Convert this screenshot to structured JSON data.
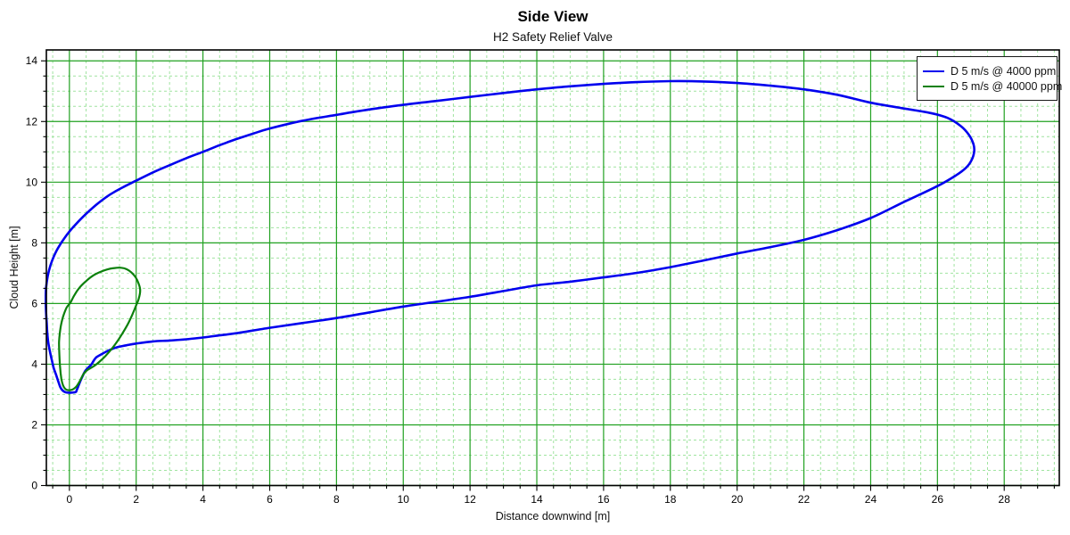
{
  "title": "Side View",
  "subtitle": "H2 Safety Relief Valve",
  "chart_data": {
    "type": "line",
    "title": "Side View",
    "subtitle": "H2 Safety Relief Valve",
    "xlabel": "Distance downwind [m]",
    "ylabel": "Cloud Height [m]",
    "xlim": [
      -0.69,
      29.65
    ],
    "ylim": [
      0,
      14.36
    ],
    "x_major_ticks": [
      0,
      2,
      4,
      6,
      8,
      10,
      12,
      14,
      16,
      18,
      20,
      22,
      24,
      26,
      28
    ],
    "y_major_ticks": [
      0,
      2,
      4,
      6,
      8,
      10,
      12,
      14
    ],
    "x_minor_step": 0.5,
    "y_minor_step": 0.5,
    "grid": {
      "major_color": "#21a121",
      "minor_color": "#a0e4a0",
      "minor_dash": "3 3",
      "border_color": "#000000"
    },
    "legend_position": "top-right",
    "series": [
      {
        "name": "D 5 m/s @ 4000 ppm",
        "color": "#0000ee",
        "width": 2.6,
        "closed": true,
        "points": [
          [
            0.19,
            3.08
          ],
          [
            0.05,
            3.06
          ],
          [
            -0.1,
            3.07
          ],
          [
            -0.2,
            3.13
          ],
          [
            -0.27,
            3.24
          ],
          [
            -0.33,
            3.42
          ],
          [
            -0.4,
            3.65
          ],
          [
            -0.47,
            3.87
          ],
          [
            -0.52,
            4.1
          ],
          [
            -0.58,
            4.4
          ],
          [
            -0.63,
            4.7
          ],
          [
            -0.66,
            5.0
          ],
          [
            -0.68,
            5.35
          ],
          [
            -0.7,
            5.75
          ],
          [
            -0.71,
            6.15
          ],
          [
            -0.7,
            6.5
          ],
          [
            -0.65,
            6.9
          ],
          [
            -0.57,
            7.25
          ],
          [
            -0.46,
            7.57
          ],
          [
            -0.32,
            7.87
          ],
          [
            -0.12,
            8.2
          ],
          [
            0.1,
            8.5
          ],
          [
            0.4,
            8.85
          ],
          [
            0.8,
            9.25
          ],
          [
            1.2,
            9.58
          ],
          [
            1.6,
            9.83
          ],
          [
            2.0,
            10.05
          ],
          [
            2.5,
            10.32
          ],
          [
            3.0,
            10.56
          ],
          [
            3.5,
            10.79
          ],
          [
            4.0,
            11.0
          ],
          [
            4.5,
            11.22
          ],
          [
            5.0,
            11.42
          ],
          [
            5.5,
            11.6
          ],
          [
            6.0,
            11.77
          ],
          [
            7.0,
            12.03
          ],
          [
            8.0,
            12.22
          ],
          [
            9.0,
            12.4
          ],
          [
            10.0,
            12.55
          ],
          [
            11.0,
            12.68
          ],
          [
            12.0,
            12.81
          ],
          [
            13.0,
            12.94
          ],
          [
            14.0,
            13.06
          ],
          [
            15.0,
            13.16
          ],
          [
            16.0,
            13.24
          ],
          [
            17.0,
            13.3
          ],
          [
            18.0,
            13.33
          ],
          [
            19.0,
            13.32
          ],
          [
            20.0,
            13.27
          ],
          [
            21.0,
            13.18
          ],
          [
            22.0,
            13.06
          ],
          [
            23.0,
            12.88
          ],
          [
            24.0,
            12.62
          ],
          [
            25.0,
            12.43
          ],
          [
            25.8,
            12.28
          ],
          [
            26.3,
            12.12
          ],
          [
            26.7,
            11.85
          ],
          [
            26.95,
            11.55
          ],
          [
            27.08,
            11.25
          ],
          [
            27.1,
            11.0
          ],
          [
            27.02,
            10.72
          ],
          [
            26.85,
            10.47
          ],
          [
            26.55,
            10.22
          ],
          [
            26.0,
            9.87
          ],
          [
            25.0,
            9.35
          ],
          [
            24.0,
            8.82
          ],
          [
            23.0,
            8.42
          ],
          [
            22.0,
            8.1
          ],
          [
            21.0,
            7.86
          ],
          [
            20.0,
            7.65
          ],
          [
            19.0,
            7.42
          ],
          [
            18.0,
            7.2
          ],
          [
            17.0,
            7.01
          ],
          [
            16.0,
            6.86
          ],
          [
            15.0,
            6.72
          ],
          [
            14.0,
            6.6
          ],
          [
            13.0,
            6.41
          ],
          [
            12.0,
            6.22
          ],
          [
            11.0,
            6.06
          ],
          [
            10.0,
            5.9
          ],
          [
            9.0,
            5.71
          ],
          [
            8.0,
            5.52
          ],
          [
            7.0,
            5.36
          ],
          [
            6.0,
            5.2
          ],
          [
            5.0,
            5.02
          ],
          [
            4.5,
            4.95
          ],
          [
            4.0,
            4.88
          ],
          [
            3.5,
            4.82
          ],
          [
            3.0,
            4.78
          ],
          [
            2.5,
            4.75
          ],
          [
            2.0,
            4.68
          ],
          [
            1.7,
            4.62
          ],
          [
            1.4,
            4.55
          ],
          [
            1.15,
            4.44
          ],
          [
            0.95,
            4.32
          ],
          [
            0.8,
            4.22
          ],
          [
            0.72,
            4.1
          ],
          [
            0.65,
            3.98
          ],
          [
            0.55,
            3.87
          ],
          [
            0.47,
            3.77
          ],
          [
            0.4,
            3.62
          ],
          [
            0.33,
            3.45
          ],
          [
            0.27,
            3.28
          ],
          [
            0.22,
            3.15
          ]
        ]
      },
      {
        "name": "D 5 m/s @ 40000 ppm",
        "color": "#0b800b",
        "width": 2.2,
        "closed": true,
        "points": [
          [
            0.1,
            3.17
          ],
          [
            -0.02,
            3.14
          ],
          [
            -0.12,
            3.18
          ],
          [
            -0.19,
            3.3
          ],
          [
            -0.24,
            3.52
          ],
          [
            -0.28,
            3.9
          ],
          [
            -0.3,
            4.3
          ],
          [
            -0.31,
            4.7
          ],
          [
            -0.29,
            5.0
          ],
          [
            -0.25,
            5.3
          ],
          [
            -0.18,
            5.6
          ],
          [
            -0.08,
            5.87
          ],
          [
            0.03,
            6.03
          ],
          [
            0.15,
            6.28
          ],
          [
            0.3,
            6.52
          ],
          [
            0.48,
            6.72
          ],
          [
            0.68,
            6.9
          ],
          [
            0.9,
            7.03
          ],
          [
            1.12,
            7.12
          ],
          [
            1.35,
            7.17
          ],
          [
            1.55,
            7.18
          ],
          [
            1.72,
            7.13
          ],
          [
            1.86,
            7.02
          ],
          [
            1.98,
            6.87
          ],
          [
            2.07,
            6.67
          ],
          [
            2.12,
            6.44
          ],
          [
            2.08,
            6.17
          ],
          [
            2.0,
            5.94
          ],
          [
            1.88,
            5.62
          ],
          [
            1.74,
            5.3
          ],
          [
            1.58,
            5.0
          ],
          [
            1.42,
            4.73
          ],
          [
            1.25,
            4.48
          ],
          [
            1.08,
            4.27
          ],
          [
            0.92,
            4.1
          ],
          [
            0.78,
            3.97
          ],
          [
            0.65,
            3.88
          ],
          [
            0.53,
            3.8
          ],
          [
            0.44,
            3.7
          ],
          [
            0.37,
            3.57
          ],
          [
            0.29,
            3.4
          ],
          [
            0.2,
            3.25
          ]
        ]
      }
    ]
  }
}
